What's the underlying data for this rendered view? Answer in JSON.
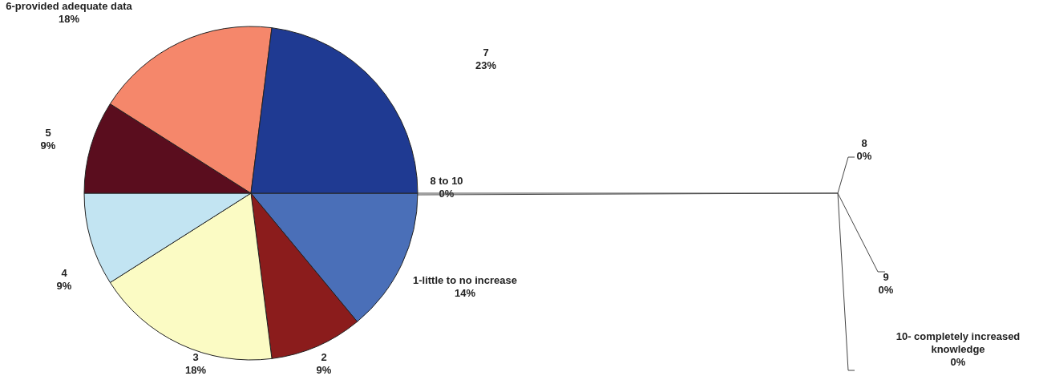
{
  "chart_data": [
    {
      "type": "pie",
      "categories": [
        "8 to 10",
        "1-little to no increase",
        "2",
        "3",
        "4",
        "5",
        "6-provided adequate data",
        "7"
      ],
      "values": [
        0,
        14,
        9,
        18,
        9,
        9,
        18,
        23
      ],
      "value_labels": [
        "0%",
        "14%",
        "9%",
        "18%",
        "9%",
        "9%",
        "18%",
        "23%"
      ],
      "colors": [
        "#ffffff",
        "#4a6fb8",
        "#8b1c1c",
        "#fbfbc4",
        "#c2e4f2",
        "#5a0d1e",
        "#f5876b",
        "#1f3a92"
      ]
    },
    {
      "type": "other",
      "categories": [
        "8",
        "9",
        "10- completely increased knowledge"
      ],
      "values": [
        0,
        0,
        0
      ],
      "value_labels": [
        "0%",
        "0%",
        "0%"
      ]
    }
  ]
}
